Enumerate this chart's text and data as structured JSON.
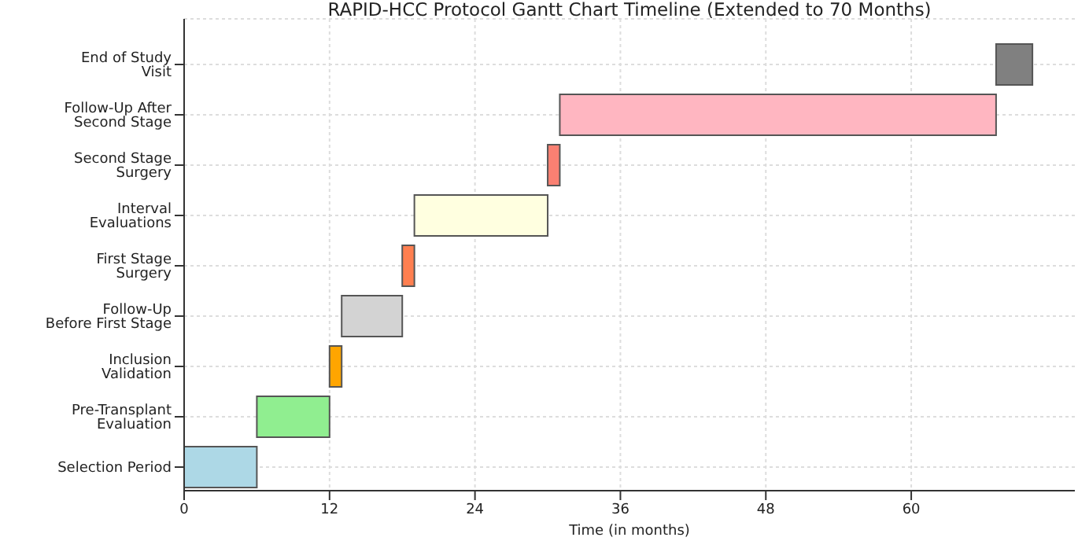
{
  "chart_data": {
    "type": "bar",
    "orientation": "horizontal",
    "title": "RAPID-HCC Protocol Gantt Chart Timeline (Extended to 70 Months)",
    "xlabel": "Time (in months)",
    "categories": [
      "End of Study Visit",
      "Follow-Up After Second Stage",
      "Second Stage Surgery",
      "Interval Evaluations",
      "First Stage Surgery",
      "Follow-Up Before First Stage",
      "Inclusion Validation",
      "Pre-Transplant Evaluation",
      "Selection Period"
    ],
    "base": [
      67,
      31,
      30,
      19,
      18,
      13,
      12,
      6,
      0
    ],
    "values": [
      3,
      36,
      1,
      11,
      1,
      5,
      1,
      6,
      6
    ],
    "colors": [
      "#808080",
      "#ffb6c1",
      "#fa8072",
      "#ffffe0",
      "#ff7f50",
      "#d3d3d3",
      "#ffa500",
      "#90ee90",
      "#add8e6"
    ],
    "xlim": [
      0,
      73.5
    ],
    "xticks": [
      0,
      12,
      24,
      36,
      48,
      60
    ],
    "grid": true
  }
}
